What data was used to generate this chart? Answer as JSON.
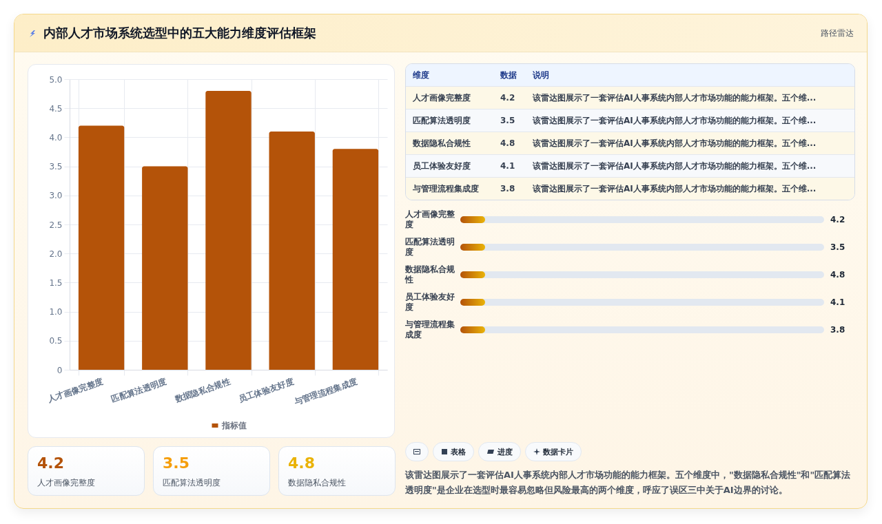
{
  "chart_data": [
    {
      "type": "other",
      "title": "内部人才市场系统选型中的五大能力维度评估框架",
      "annotations": [
        "路径雷达"
      ]
    },
    {
      "type": "bar",
      "categories": [
        "人才画像完整度",
        "匹配算法透明度",
        "数据隐私合规性",
        "员工体验友好度",
        "与管理流程集成度"
      ],
      "series": [
        {
          "name": "指标值",
          "color": "#b45309",
          "values": [
            4.2,
            3.5,
            4.8,
            4.1,
            3.8
          ]
        }
      ],
      "ylim": [
        0,
        5
      ],
      "yticks": [
        0,
        0.5,
        {
          "value": 1,
          "label": "1.0"
        },
        1.5,
        {
          "value": 2,
          "label": "2.0"
        },
        2.5,
        {
          "value": 3,
          "label": "3.0"
        },
        3.5,
        {
          "value": 4,
          "label": "4.0"
        },
        4.5,
        {
          "value": 5,
          "label": "5.0"
        }
      ],
      "grid": true,
      "legend": "bottom"
    },
    {
      "type": "other",
      "categories": [
        "人才画像完整度",
        "匹配算法透明度",
        "数据隐私合规性",
        "员工体验友好度",
        "与管理流程集成度"
      ],
      "values": [
        4.2,
        3.5,
        4.8,
        4.1,
        3.8
      ],
      "data_labels": true,
      "annotations": [
        "维度",
        "数据",
        "说明",
        "该雷达图展示了一套评估AI人事系统内部人才市场功能的能力框架。五个维...",
        "该雷达图展示了一套评估AI人事系统内部人才市场功能的能力框架。五个维...",
        "该雷达图展示了一套评估AI人事系统内部人才市场功能的能力框架。五个维...",
        "该雷达图展示了一套评估AI人事系统内部人才市场功能的能力框架。五个维...",
        "该雷达图展示了一套评估AI人事系统内部人才市场功能的能力框架。五个维..."
      ]
    },
    {
      "type": "other",
      "categories": [
        "人才画像完整度",
        "匹配算法透明度",
        "数据隐私合规性",
        "员工体验友好度",
        "与管理流程集成度"
      ],
      "values": [
        4.2,
        3.5,
        4.8,
        4.1,
        3.8
      ],
      "data_labels": true
    },
    {
      "type": "other",
      "categories": [
        "人才画像完整度",
        "匹配算法透明度",
        "数据隐私合规性"
      ],
      "values": [
        4.2,
        3.5,
        4.8
      ],
      "data_labels": true
    },
    {
      "type": "other",
      "annotations": [
        "表格",
        "进度",
        "数据卡片",
        "该雷达图展示了一套评估AI人事系统内部人才市场功能的能力框架。五个维度中，\"数据隐私合规性\"和\"匹配算法透明度\"是企业在选型时最容易忽略但风险最高的两个维度，呼应了误区三中关于AI边界的讨论。"
      ]
    }
  ]
}
